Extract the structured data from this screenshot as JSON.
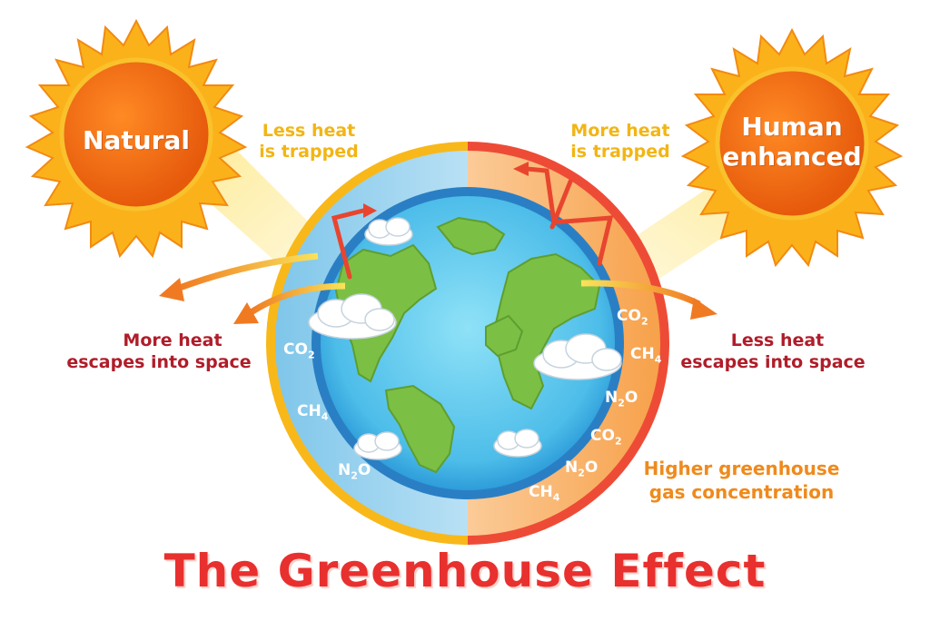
{
  "title": "The Greenhouse Effect",
  "suns": {
    "natural": "Natural",
    "human_line1": "Human",
    "human_line2": "enhanced"
  },
  "labels": {
    "less_heat_trapped_1": "Less heat",
    "less_heat_trapped_2": "is trapped",
    "more_heat_trapped_1": "More heat",
    "more_heat_trapped_2": "is trapped",
    "more_heat_escapes_1": "More heat",
    "more_heat_escapes_2": "escapes into space",
    "less_heat_escapes_1": "Less heat",
    "less_heat_escapes_2": "escapes into space",
    "higher_ghg_1": "Higher greenhouse",
    "higher_ghg_2": "gas concentration"
  },
  "gases": {
    "left": [
      {
        "base": "CO",
        "sub": "2",
        "tail": ""
      },
      {
        "base": "CH",
        "sub": "4",
        "tail": ""
      },
      {
        "base": "N",
        "sub": "2",
        "tail": "O"
      }
    ],
    "right": [
      {
        "base": "CO",
        "sub": "2",
        "tail": ""
      },
      {
        "base": "CH",
        "sub": "4",
        "tail": ""
      },
      {
        "base": "N",
        "sub": "2",
        "tail": "O"
      },
      {
        "base": "CO",
        "sub": "2",
        "tail": ""
      },
      {
        "base": "N",
        "sub": "2",
        "tail": "O"
      },
      {
        "base": "CH",
        "sub": "4",
        "tail": ""
      }
    ]
  },
  "colors": {
    "sun": "#f26b12",
    "sun_flame": "#fbb21a",
    "left_ring": "#f7b41a",
    "right_ring": "#ee4b37",
    "ocean": "#3ba6e0",
    "land": "#7cbf45",
    "title": "#e8302e"
  }
}
